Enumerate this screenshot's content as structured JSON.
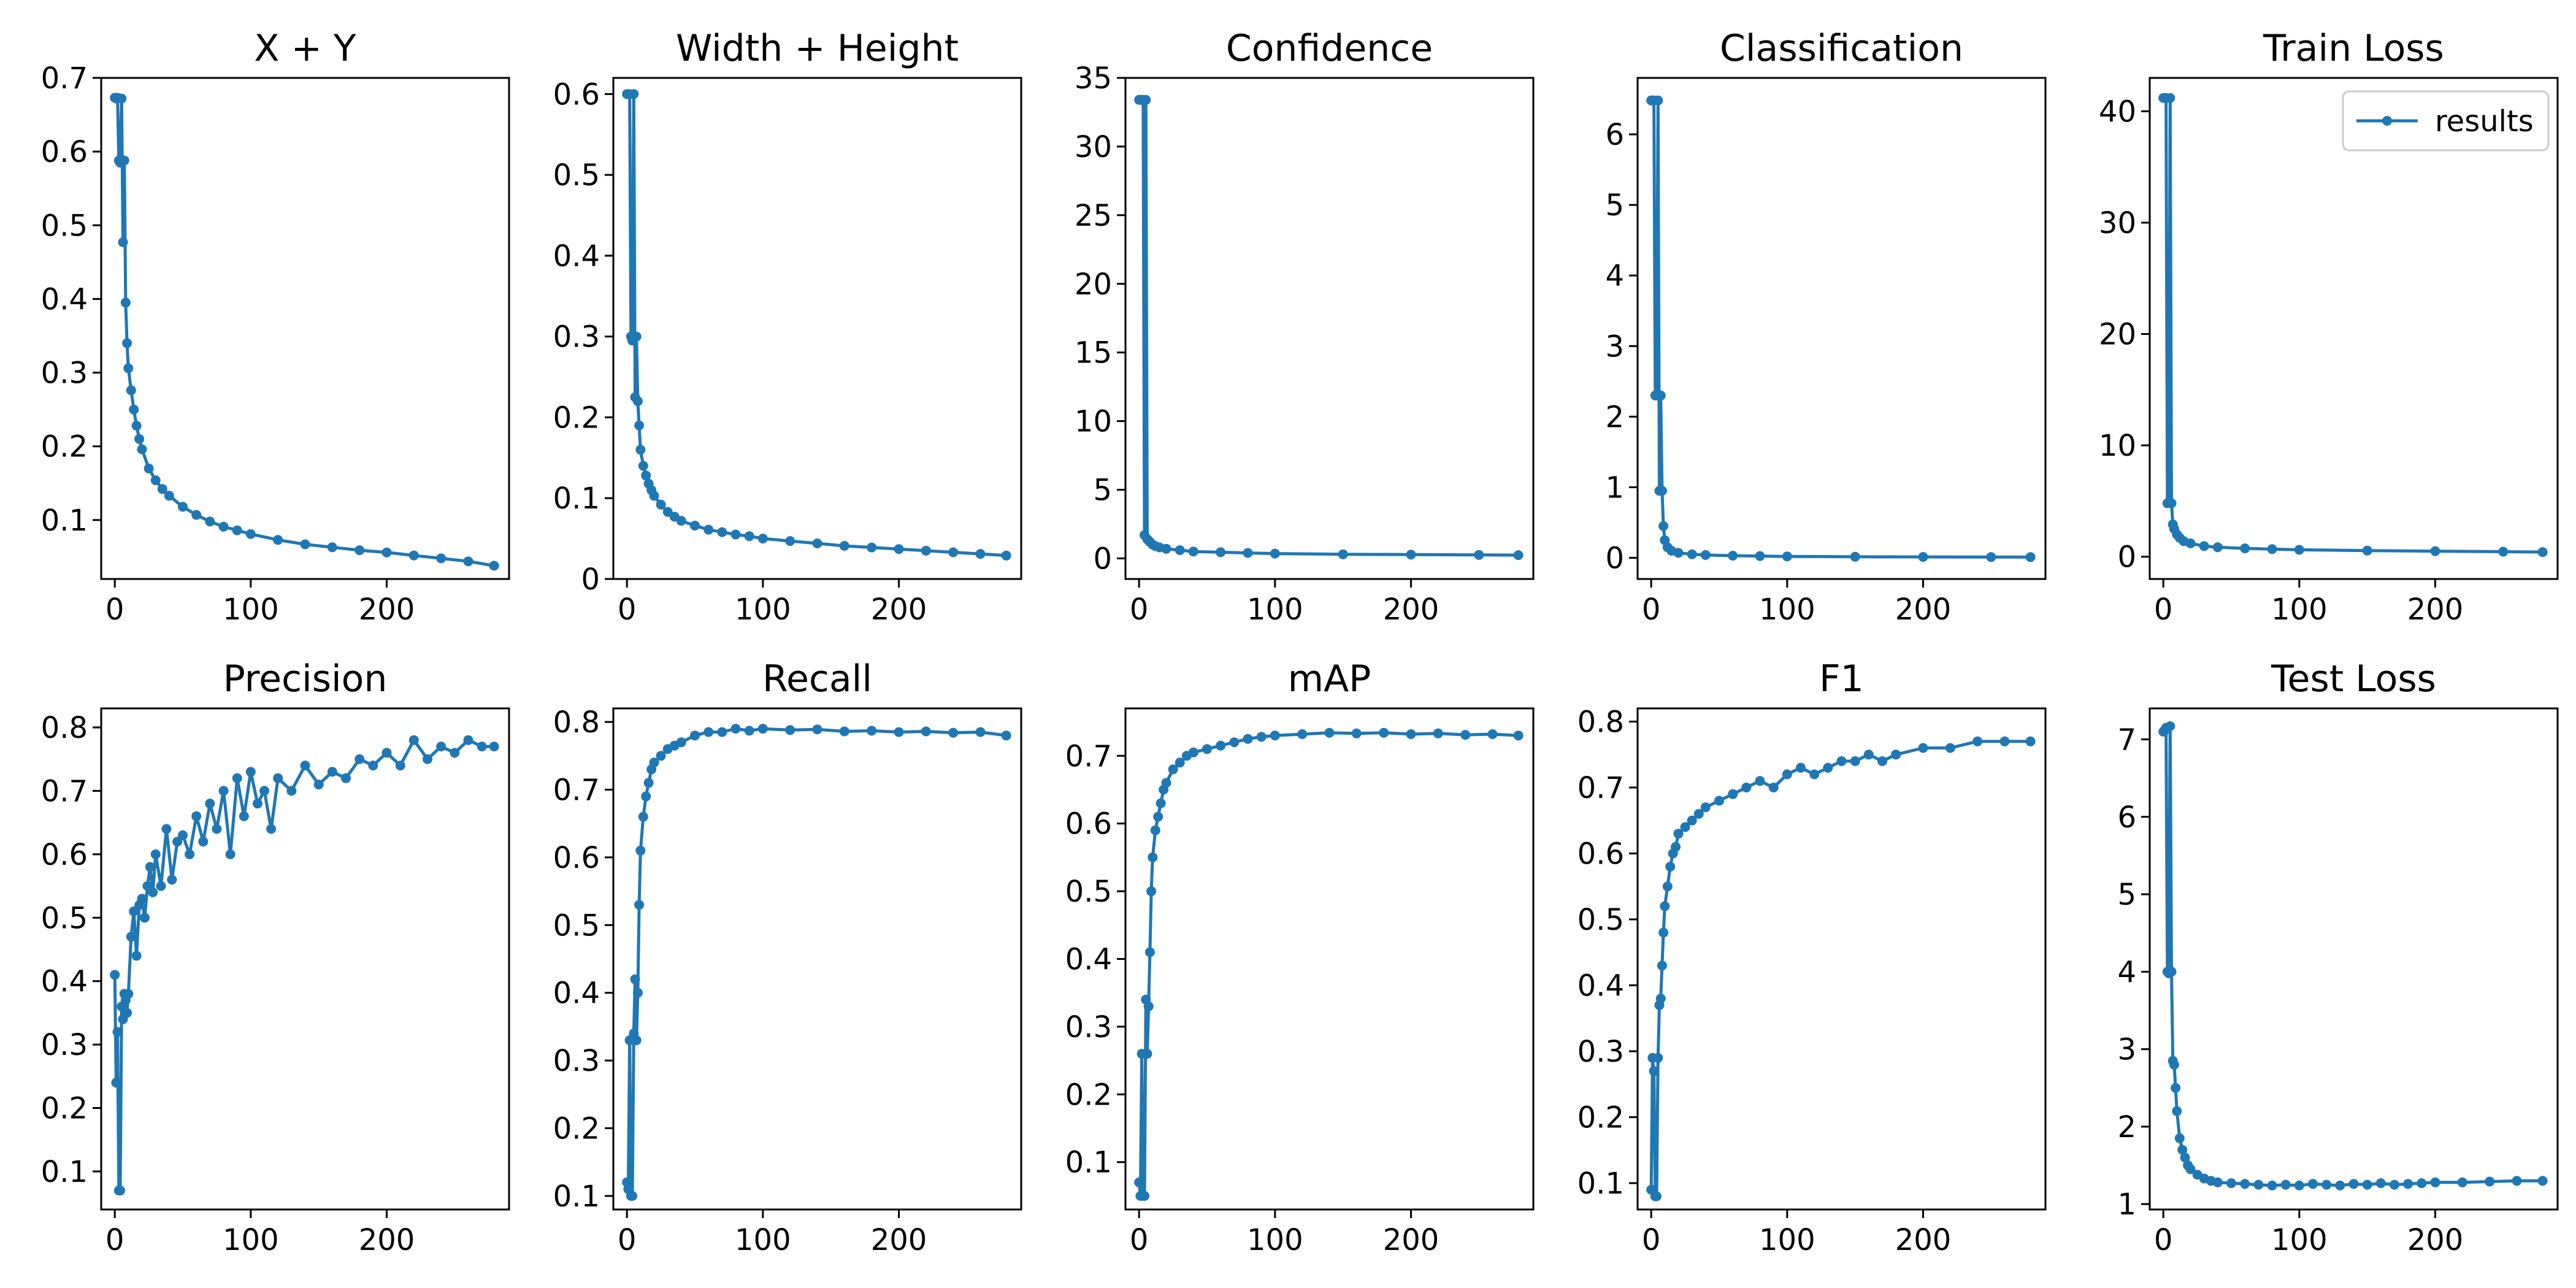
{
  "figure": {
    "series_color": "#1f77b4",
    "legend": {
      "label": "results",
      "position": "top-right",
      "panel": 4
    }
  },
  "chart_data": [
    {
      "type": "line",
      "title": "X + Y",
      "xlim": [
        -10,
        290
      ],
      "ylim": [
        0.02,
        0.7
      ],
      "xticks": [
        0,
        100,
        200
      ],
      "yticks": [
        0.1,
        0.2,
        0.3,
        0.4,
        0.5,
        0.6,
        0.7
      ],
      "x": [
        0,
        1,
        2,
        3,
        4,
        5,
        6,
        7,
        8,
        9,
        10,
        12,
        14,
        16,
        18,
        20,
        25,
        30,
        35,
        40,
        50,
        60,
        70,
        80,
        90,
        100,
        120,
        140,
        160,
        180,
        200,
        220,
        240,
        260,
        279
      ],
      "series": [
        {
          "name": "results",
          "values": [
            0.673,
            0.672,
            0.673,
            0.588,
            0.585,
            0.672,
            0.477,
            0.588,
            0.395,
            0.34,
            0.306,
            0.276,
            0.25,
            0.228,
            0.21,
            0.196,
            0.17,
            0.154,
            0.142,
            0.133,
            0.118,
            0.107,
            0.098,
            0.091,
            0.086,
            0.081,
            0.073,
            0.067,
            0.063,
            0.059,
            0.056,
            0.052,
            0.048,
            0.044,
            0.038
          ]
        }
      ]
    },
    {
      "type": "line",
      "title": "Width + Height",
      "xlim": [
        -10,
        290
      ],
      "ylim": [
        0,
        0.62
      ],
      "xticks": [
        0,
        100,
        200
      ],
      "yticks": [
        0.0,
        0.1,
        0.2,
        0.3,
        0.4,
        0.5,
        0.6
      ],
      "x": [
        0,
        1,
        2,
        3,
        4,
        5,
        6,
        7,
        8,
        9,
        10,
        12,
        14,
        16,
        18,
        20,
        25,
        30,
        35,
        40,
        50,
        60,
        70,
        80,
        90,
        100,
        120,
        140,
        160,
        180,
        200,
        220,
        240,
        260,
        279
      ],
      "series": [
        {
          "name": "results",
          "values": [
            0.6,
            0.6,
            0.6,
            0.3,
            0.295,
            0.6,
            0.225,
            0.3,
            0.22,
            0.19,
            0.16,
            0.14,
            0.128,
            0.118,
            0.11,
            0.103,
            0.092,
            0.083,
            0.077,
            0.072,
            0.066,
            0.061,
            0.058,
            0.055,
            0.053,
            0.05,
            0.047,
            0.044,
            0.041,
            0.039,
            0.037,
            0.035,
            0.033,
            0.031,
            0.029
          ]
        }
      ]
    },
    {
      "type": "line",
      "title": "Confidence",
      "xlim": [
        -10,
        290
      ],
      "ylim": [
        -1.5,
        35
      ],
      "xticks": [
        0,
        100,
        200
      ],
      "yticks": [
        0,
        5,
        10,
        15,
        20,
        25,
        30,
        35
      ],
      "x": [
        0,
        1,
        2,
        3,
        4,
        5,
        6,
        7,
        8,
        10,
        12,
        15,
        20,
        30,
        40,
        60,
        80,
        100,
        150,
        200,
        250,
        279
      ],
      "series": [
        {
          "name": "results",
          "values": [
            33.4,
            33.4,
            33.4,
            33.4,
            1.7,
            33.4,
            1.4,
            1.3,
            1.2,
            1.0,
            0.9,
            0.8,
            0.7,
            0.6,
            0.5,
            0.45,
            0.4,
            0.35,
            0.3,
            0.28,
            0.25,
            0.24
          ]
        }
      ]
    },
    {
      "type": "line",
      "title": "Classification",
      "xlim": [
        -10,
        290
      ],
      "ylim": [
        -0.3,
        6.8
      ],
      "xticks": [
        0,
        100,
        200
      ],
      "yticks": [
        0,
        1,
        2,
        3,
        4,
        5,
        6
      ],
      "x": [
        0,
        1,
        2,
        3,
        4,
        5,
        6,
        7,
        8,
        9,
        10,
        12,
        15,
        20,
        30,
        40,
        60,
        80,
        100,
        150,
        200,
        250,
        279
      ],
      "series": [
        {
          "name": "results",
          "values": [
            6.48,
            6.48,
            6.48,
            2.3,
            2.3,
            6.48,
            0.95,
            2.3,
            0.95,
            0.45,
            0.25,
            0.15,
            0.1,
            0.07,
            0.05,
            0.04,
            0.03,
            0.025,
            0.02,
            0.015,
            0.013,
            0.01,
            0.01
          ]
        }
      ]
    },
    {
      "type": "line",
      "title": "Train Loss",
      "xlim": [
        -10,
        290
      ],
      "ylim": [
        -2,
        43
      ],
      "xticks": [
        0,
        100,
        200
      ],
      "yticks": [
        0,
        10,
        20,
        30,
        40
      ],
      "x": [
        0,
        1,
        2,
        3,
        4,
        5,
        6,
        7,
        8,
        10,
        12,
        15,
        20,
        30,
        40,
        60,
        80,
        100,
        150,
        200,
        250,
        279
      ],
      "series": [
        {
          "name": "results",
          "values": [
            41.2,
            41.2,
            41.2,
            4.8,
            4.9,
            41.2,
            4.8,
            2.9,
            2.5,
            2.0,
            1.7,
            1.4,
            1.2,
            0.95,
            0.85,
            0.75,
            0.68,
            0.62,
            0.55,
            0.5,
            0.45,
            0.42
          ]
        }
      ]
    },
    {
      "type": "line",
      "title": "Precision",
      "xlim": [
        -10,
        290
      ],
      "ylim": [
        0.04,
        0.83
      ],
      "xticks": [
        0,
        100,
        200
      ],
      "yticks": [
        0.1,
        0.2,
        0.3,
        0.4,
        0.5,
        0.6,
        0.7,
        0.8
      ],
      "x": [
        0,
        1,
        2,
        3,
        4,
        5,
        6,
        7,
        8,
        9,
        10,
        12,
        14,
        16,
        18,
        20,
        22,
        24,
        26,
        28,
        30,
        34,
        38,
        42,
        46,
        50,
        55,
        60,
        65,
        70,
        75,
        80,
        85,
        90,
        95,
        100,
        105,
        110,
        115,
        120,
        130,
        140,
        150,
        160,
        170,
        180,
        190,
        200,
        210,
        220,
        230,
        240,
        250,
        260,
        270,
        279
      ],
      "series": [
        {
          "name": "results",
          "values": [
            0.41,
            0.24,
            0.32,
            0.07,
            0.07,
            0.36,
            0.34,
            0.38,
            0.37,
            0.35,
            0.38,
            0.47,
            0.51,
            0.44,
            0.52,
            0.53,
            0.5,
            0.55,
            0.58,
            0.54,
            0.6,
            0.55,
            0.64,
            0.56,
            0.62,
            0.63,
            0.6,
            0.66,
            0.62,
            0.68,
            0.64,
            0.7,
            0.6,
            0.72,
            0.66,
            0.73,
            0.68,
            0.7,
            0.64,
            0.72,
            0.7,
            0.74,
            0.71,
            0.73,
            0.72,
            0.75,
            0.74,
            0.76,
            0.74,
            0.78,
            0.75,
            0.77,
            0.76,
            0.78,
            0.77,
            0.77
          ]
        }
      ]
    },
    {
      "type": "line",
      "title": "Recall",
      "xlim": [
        -10,
        290
      ],
      "ylim": [
        0.08,
        0.82
      ],
      "xticks": [
        0,
        100,
        200
      ],
      "yticks": [
        0.1,
        0.2,
        0.3,
        0.4,
        0.5,
        0.6,
        0.7,
        0.8
      ],
      "x": [
        0,
        1,
        2,
        3,
        4,
        5,
        6,
        7,
        8,
        9,
        10,
        12,
        14,
        16,
        18,
        20,
        25,
        30,
        35,
        40,
        50,
        60,
        70,
        80,
        90,
        100,
        120,
        140,
        160,
        180,
        200,
        220,
        240,
        260,
        279
      ],
      "series": [
        {
          "name": "results",
          "values": [
            0.12,
            0.11,
            0.33,
            0.1,
            0.1,
            0.34,
            0.42,
            0.33,
            0.4,
            0.53,
            0.61,
            0.66,
            0.69,
            0.71,
            0.73,
            0.74,
            0.75,
            0.76,
            0.765,
            0.77,
            0.78,
            0.785,
            0.785,
            0.79,
            0.787,
            0.79,
            0.788,
            0.789,
            0.786,
            0.787,
            0.785,
            0.786,
            0.784,
            0.785,
            0.78
          ]
        }
      ]
    },
    {
      "type": "line",
      "title": "mAP",
      "xlim": [
        -10,
        290
      ],
      "ylim": [
        0.03,
        0.77
      ],
      "xticks": [
        0,
        100,
        200
      ],
      "yticks": [
        0.1,
        0.2,
        0.3,
        0.4,
        0.5,
        0.6,
        0.7
      ],
      "x": [
        0,
        1,
        2,
        3,
        4,
        5,
        6,
        7,
        8,
        9,
        10,
        12,
        14,
        16,
        18,
        20,
        25,
        30,
        35,
        40,
        50,
        60,
        70,
        80,
        90,
        100,
        120,
        140,
        160,
        180,
        200,
        220,
        240,
        260,
        279
      ],
      "series": [
        {
          "name": "results",
          "values": [
            0.07,
            0.05,
            0.26,
            0.05,
            0.05,
            0.34,
            0.26,
            0.33,
            0.41,
            0.5,
            0.55,
            0.59,
            0.61,
            0.63,
            0.65,
            0.66,
            0.68,
            0.69,
            0.7,
            0.705,
            0.71,
            0.715,
            0.72,
            0.725,
            0.728,
            0.73,
            0.732,
            0.734,
            0.733,
            0.734,
            0.732,
            0.733,
            0.731,
            0.732,
            0.73
          ]
        }
      ]
    },
    {
      "type": "line",
      "title": "F1",
      "xlim": [
        -10,
        290
      ],
      "ylim": [
        0.06,
        0.82
      ],
      "xticks": [
        0,
        100,
        200
      ],
      "yticks": [
        0.1,
        0.2,
        0.3,
        0.4,
        0.5,
        0.6,
        0.7,
        0.8
      ],
      "x": [
        0,
        1,
        2,
        3,
        4,
        5,
        6,
        7,
        8,
        9,
        10,
        12,
        14,
        16,
        18,
        20,
        25,
        30,
        35,
        40,
        50,
        60,
        70,
        80,
        90,
        100,
        110,
        120,
        130,
        140,
        150,
        160,
        170,
        180,
        200,
        220,
        240,
        260,
        279
      ],
      "series": [
        {
          "name": "results",
          "values": [
            0.09,
            0.29,
            0.27,
            0.08,
            0.08,
            0.29,
            0.37,
            0.38,
            0.43,
            0.48,
            0.52,
            0.55,
            0.58,
            0.6,
            0.61,
            0.63,
            0.64,
            0.65,
            0.66,
            0.67,
            0.68,
            0.69,
            0.7,
            0.71,
            0.7,
            0.72,
            0.73,
            0.72,
            0.73,
            0.74,
            0.74,
            0.75,
            0.74,
            0.75,
            0.76,
            0.76,
            0.77,
            0.77,
            0.77
          ]
        }
      ]
    },
    {
      "type": "line",
      "title": "Test Loss",
      "xlim": [
        -10,
        290
      ],
      "ylim": [
        0.93,
        7.4
      ],
      "xticks": [
        0,
        100,
        200
      ],
      "yticks": [
        1,
        2,
        3,
        4,
        5,
        6,
        7
      ],
      "x": [
        0,
        1,
        2,
        3,
        4,
        5,
        6,
        7,
        8,
        9,
        10,
        12,
        14,
        16,
        18,
        20,
        25,
        30,
        35,
        40,
        50,
        60,
        70,
        80,
        90,
        100,
        110,
        120,
        130,
        140,
        150,
        160,
        170,
        180,
        190,
        200,
        220,
        240,
        260,
        279
      ],
      "series": [
        {
          "name": "results",
          "values": [
            7.1,
            7.12,
            7.15,
            4.0,
            3.98,
            7.17,
            4.0,
            2.85,
            2.8,
            2.5,
            2.2,
            1.85,
            1.7,
            1.6,
            1.5,
            1.45,
            1.38,
            1.33,
            1.3,
            1.28,
            1.27,
            1.26,
            1.25,
            1.24,
            1.25,
            1.24,
            1.26,
            1.25,
            1.24,
            1.26,
            1.25,
            1.27,
            1.25,
            1.26,
            1.27,
            1.28,
            1.28,
            1.29,
            1.3,
            1.3
          ]
        }
      ]
    }
  ]
}
